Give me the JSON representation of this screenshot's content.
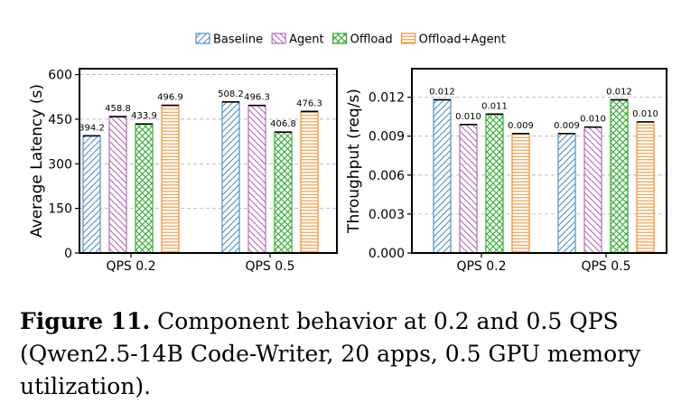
{
  "legend": [
    {
      "label": "Baseline",
      "color": "#4f8fc9",
      "pattern": "diag-right"
    },
    {
      "label": "Agent",
      "color": "#b06ab3",
      "pattern": "diag-left"
    },
    {
      "label": "Offload",
      "color": "#2eaa2e",
      "pattern": "cross"
    },
    {
      "label": "Offload+Agent",
      "color": "#f28e2b",
      "pattern": "horizontal"
    }
  ],
  "caption": {
    "label": "Figure 11.",
    "text": "Component behavior at 0.2 and 0.5 QPS (Qwen2.5-14B Code-Writer, 20 apps, 0.5 GPU memory utilization)."
  },
  "chart_data": [
    {
      "type": "bar",
      "title": "",
      "xlabel": "",
      "ylabel": "Average Latency (s)",
      "ylim": [
        0,
        620
      ],
      "yticks": [
        0,
        150,
        300,
        450,
        600
      ],
      "ytick_labels": [
        "0",
        "150",
        "300",
        "450",
        "600"
      ],
      "grid": "y-dashed",
      "legend_position": "top-center",
      "categories": [
        "QPS 0.2",
        "QPS 0.5"
      ],
      "series": [
        {
          "name": "Baseline",
          "values": [
            394.2,
            508.2
          ],
          "labels": [
            "394.2",
            "508.2"
          ]
        },
        {
          "name": "Agent",
          "values": [
            458.8,
            496.3
          ],
          "labels": [
            "458.8",
            "496.3"
          ]
        },
        {
          "name": "Offload",
          "values": [
            433.9,
            406.8
          ],
          "labels": [
            "433.9",
            "406.8"
          ]
        },
        {
          "name": "Offload+Agent",
          "values": [
            496.9,
            476.3
          ],
          "labels": [
            "496.9",
            "476.3"
          ]
        }
      ]
    },
    {
      "type": "bar",
      "title": "",
      "xlabel": "",
      "ylabel": "Throughput (req/s)",
      "ylim": [
        0,
        0.0142
      ],
      "yticks": [
        0,
        0.003,
        0.006,
        0.009,
        0.012
      ],
      "ytick_labels": [
        "0.000",
        "0.003",
        "0.006",
        "0.009",
        "0.012"
      ],
      "grid": "y-dashed",
      "legend_position": "top-center",
      "categories": [
        "QPS 0.2",
        "QPS 0.5"
      ],
      "series": [
        {
          "name": "Baseline",
          "values": [
            0.0118,
            0.0092
          ],
          "labels": [
            "0.012",
            "0.009"
          ]
        },
        {
          "name": "Agent",
          "values": [
            0.0099,
            0.0097
          ],
          "labels": [
            "0.010",
            "0.010"
          ]
        },
        {
          "name": "Offload",
          "values": [
            0.0107,
            0.0118
          ],
          "labels": [
            "0.011",
            "0.012"
          ]
        },
        {
          "name": "Offload+Agent",
          "values": [
            0.0092,
            0.0101
          ],
          "labels": [
            "0.009",
            "0.010"
          ]
        }
      ]
    }
  ]
}
